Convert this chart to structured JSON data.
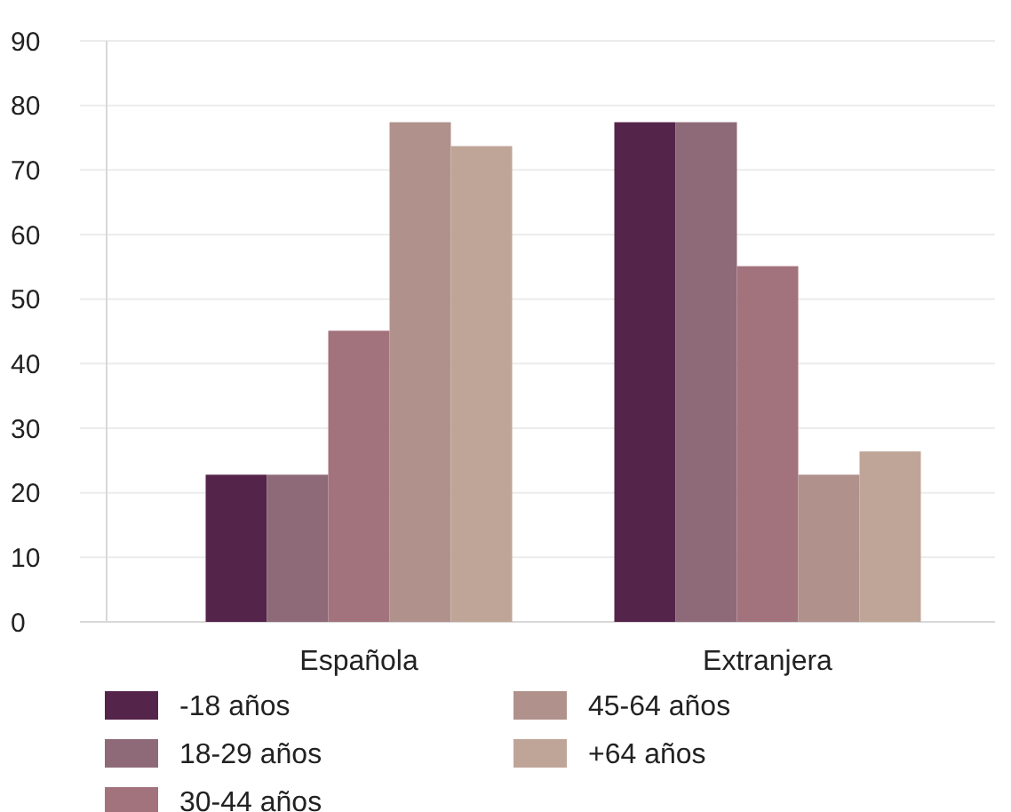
{
  "chart_data": {
    "type": "bar",
    "categories": [
      "Española",
      "Extranjera"
    ],
    "series": [
      {
        "name": "-18 años",
        "color": "#55244a",
        "values": [
          22.8,
          77.4
        ]
      },
      {
        "name": "18-29 años",
        "color": "#8e6a78",
        "values": [
          22.8,
          77.4
        ]
      },
      {
        "name": "30-44 años",
        "color": "#a3737d",
        "values": [
          45.1,
          55.1
        ]
      },
      {
        "name": "45-64 años",
        "color": "#b0918c",
        "values": [
          77.4,
          22.8
        ]
      },
      {
        "name": "+64 años",
        "color": "#bfa598",
        "values": [
          73.7,
          26.4
        ]
      }
    ],
    "ylim": [
      0,
      90
    ],
    "yticks": [
      0,
      10,
      20,
      30,
      40,
      50,
      60,
      70,
      80,
      90
    ],
    "grid": "y",
    "legend": "bottom"
  }
}
